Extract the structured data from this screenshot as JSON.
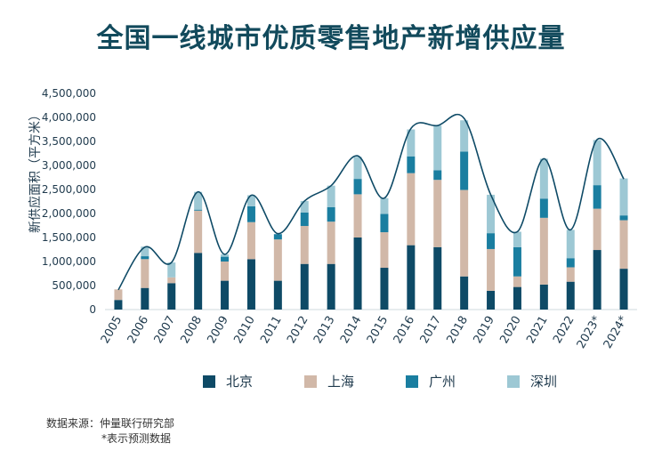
{
  "title": "全国一线城市优质零售地产新增供应量",
  "chart_data": {
    "type": "bar",
    "stacked": true,
    "title": "全国一线城市优质零售地产新增供应量",
    "ylabel": "新供应面积（平方米）",
    "xlabel": "",
    "ylim": [
      0,
      4500000
    ],
    "yticks": [
      "0",
      "500,000",
      "1,000,000",
      "1,500,000",
      "2,000,000",
      "2,500,000",
      "3,000,000",
      "3,500,000",
      "4,000,000",
      "4,500,000"
    ],
    "categories": [
      "2005",
      "2006",
      "2007",
      "2008",
      "2009",
      "2010",
      "2011",
      "2012",
      "2013",
      "2014",
      "2015",
      "2016",
      "2017",
      "2018",
      "2019",
      "2020",
      "2021",
      "2022",
      "2023*",
      "2024*"
    ],
    "series": [
      {
        "name": "北京",
        "color": "#0e4a66",
        "values": [
          200000,
          450000,
          550000,
          1180000,
          600000,
          1050000,
          600000,
          950000,
          950000,
          1500000,
          870000,
          1340000,
          1300000,
          690000,
          390000,
          470000,
          520000,
          580000,
          1240000,
          850000
        ]
      },
      {
        "name": "上海",
        "color": "#d1b8a8",
        "values": [
          220000,
          600000,
          120000,
          880000,
          400000,
          770000,
          860000,
          790000,
          880000,
          900000,
          740000,
          1500000,
          1400000,
          1800000,
          870000,
          220000,
          1390000,
          300000,
          860000,
          1010000
        ]
      },
      {
        "name": "广州",
        "color": "#1a7ea0",
        "values": [
          0,
          60000,
          0,
          20000,
          100000,
          330000,
          110000,
          280000,
          300000,
          320000,
          380000,
          350000,
          200000,
          800000,
          330000,
          610000,
          400000,
          190000,
          490000,
          100000
        ]
      },
      {
        "name": "深圳",
        "color": "#9dc8d4",
        "values": [
          0,
          200000,
          310000,
          370000,
          50000,
          230000,
          0,
          240000,
          450000,
          460000,
          330000,
          560000,
          930000,
          650000,
          800000,
          320000,
          830000,
          590000,
          940000,
          770000
        ]
      }
    ],
    "trend_line": [
      410000,
      1300000,
      980000,
      2450000,
      1150000,
      2380000,
      1580000,
      2260000,
      2580000,
      3200000,
      2320000,
      3770000,
      3830000,
      3980000,
      2390000,
      1620000,
      3140000,
      1660000,
      3540000,
      2720000
    ],
    "legend": "bottom",
    "grid": false
  },
  "legend": [
    {
      "name": "北京",
      "color": "#0e4a66"
    },
    {
      "name": "上海",
      "color": "#d1b8a8"
    },
    {
      "name": "广州",
      "color": "#1a7ea0"
    },
    {
      "name": "深圳",
      "color": "#9dc8d4"
    }
  ],
  "footnote": {
    "source": "数据来源：仲量联行研究部",
    "note": "*表示预测数据"
  }
}
